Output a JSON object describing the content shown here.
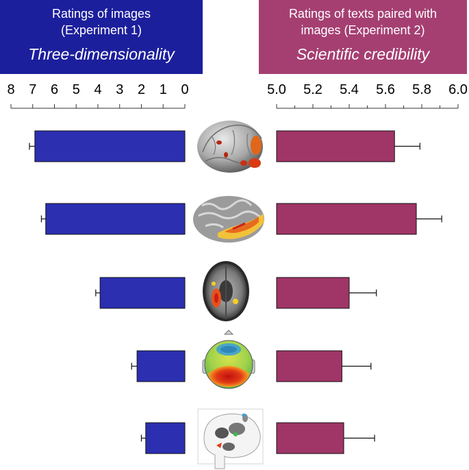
{
  "panels": {
    "left": {
      "heading_line1": "Ratings of images",
      "heading_line2": "(Experiment 1)",
      "dimension": "Three-dimensionality",
      "color": "#1c1f9c"
    },
    "right": {
      "heading_line1": "Ratings of texts paired with",
      "heading_line2": "images (Experiment 2)",
      "dimension": "Scientific credibility",
      "color": "#a53f72"
    }
  },
  "images": [
    "3D rendered brain with activations",
    "inflated cortical surface with activations",
    "axial MRI slice with activations",
    "EEG topographic scalp map",
    "glass-brain statistical map"
  ],
  "chart_data": [
    {
      "type": "bar",
      "orientation": "horizontal-reversed",
      "title": "Three-dimensionality",
      "xlim": [
        0,
        8
      ],
      "ticks": [
        "8",
        "7",
        "6",
        "5",
        "4",
        "3",
        "2",
        "1",
        "0"
      ],
      "tick_values": [
        8,
        7,
        6,
        5,
        4,
        3,
        2,
        1,
        0
      ],
      "values": [
        6.9,
        6.4,
        3.9,
        2.2,
        1.8
      ],
      "errors": [
        0.25,
        0.2,
        0.2,
        0.25,
        0.2
      ],
      "color": "#2b2fb0"
    },
    {
      "type": "bar",
      "orientation": "horizontal",
      "title": "Scientific credibility",
      "xlim": [
        5.0,
        6.0
      ],
      "ticks": [
        "5.0",
        "5.2",
        "5.4",
        "5.6",
        "5.8",
        "6.0"
      ],
      "tick_values": [
        5.0,
        5.2,
        5.4,
        5.6,
        5.8,
        6.0
      ],
      "values": [
        5.65,
        5.77,
        5.4,
        5.36,
        5.37
      ],
      "errors": [
        0.14,
        0.14,
        0.15,
        0.16,
        0.17
      ],
      "color": "#a03567"
    }
  ]
}
